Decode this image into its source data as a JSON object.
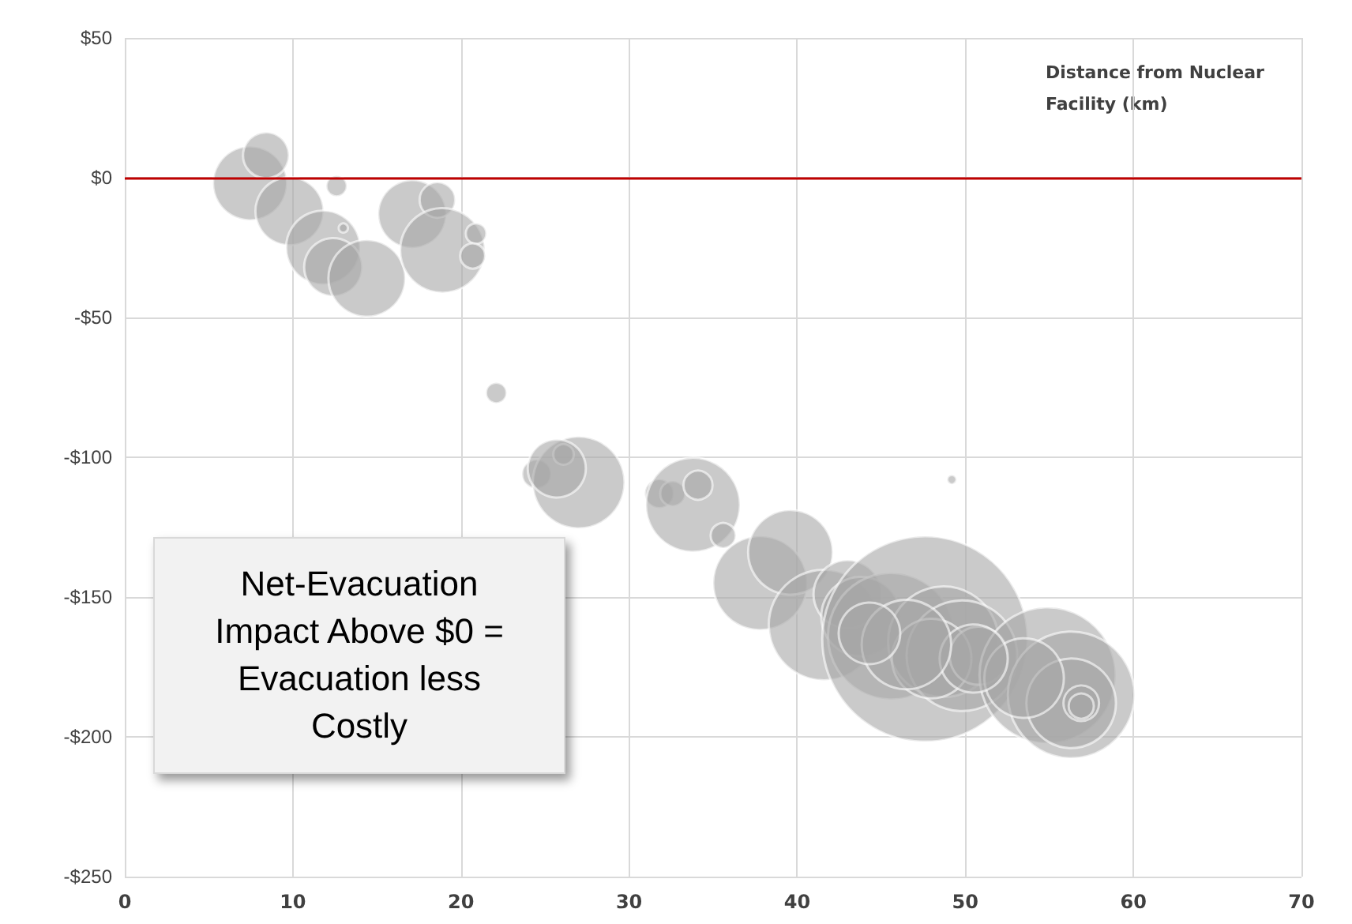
{
  "chart_data": {
    "type": "bubble",
    "xlabel": "Distance from Nuclear Facility (km)",
    "annotations": [
      "Net-Evacuation Impact Above $0 = Evacuation less Costly"
    ],
    "xlim": [
      0,
      70
    ],
    "xticks": [
      0,
      10,
      20,
      30,
      40,
      50,
      60,
      70
    ],
    "ylim": [
      -250,
      50
    ],
    "yticks": [
      {
        "value": -250,
        "label": "-$250"
      },
      {
        "value": -200,
        "label": "-$200"
      },
      {
        "value": -150,
        "label": "-$150"
      },
      {
        "value": -100,
        "label": "-$100"
      },
      {
        "value": -50,
        "label": "-$50"
      },
      {
        "value": 0,
        "label": "$0"
      },
      {
        "value": 50,
        "label": "$50"
      }
    ],
    "grid": true,
    "ref_lines": [
      {
        "axis": "y",
        "value": 0,
        "color": "#c00000"
      }
    ],
    "series": [
      {
        "color": "#a6a6a6",
        "x": [
          7.45,
          8.4,
          9.8,
          12.6,
          11.8,
          13,
          12.4,
          14.4,
          17.1,
          18.6,
          18.9,
          20.9,
          20.7,
          22.1,
          24.5,
          27,
          26.1,
          25.7,
          31.8,
          32.6,
          33.8,
          34.1,
          35.6,
          49.2,
          37.8,
          39.6,
          41.6,
          43,
          43.8,
          45.6,
          47.6,
          48.7,
          49.8,
          48,
          50.8,
          54.9,
          56.3,
          56.3,
          56.9,
          56.9,
          53.5,
          50.5,
          46.5,
          44.3
        ],
        "values": [
          -2,
          8,
          -12,
          -3,
          -25,
          -18,
          -32,
          -36,
          -13,
          -8,
          -26,
          -20,
          -28,
          -77,
          -106,
          -109,
          -99,
          -104,
          -113,
          -113,
          -117,
          -110,
          -128,
          -108,
          -145,
          -134,
          -160,
          -149,
          -157,
          -164,
          -165,
          -166,
          -171,
          -172,
          -171,
          -178,
          -185,
          -188,
          -188,
          -189,
          -179,
          -172,
          -167,
          -163
        ],
        "sizes": [
          0.13,
          0.05,
          0.11,
          0.01,
          0.13,
          0.002,
          0.08,
          0.14,
          0.11,
          0.03,
          0.17,
          0.01,
          0.015,
          0.01,
          0.02,
          0.2,
          0.01,
          0.08,
          0.02,
          0.015,
          0.21,
          0.02,
          0.015,
          0.002,
          0.21,
          0.17,
          0.29,
          0.11,
          0.15,
          0.38,
          1,
          0.29,
          0.29,
          0.15,
          0.08,
          0.44,
          0.38,
          0.19,
          0.03,
          0.015,
          0.15,
          0.11,
          0.19,
          0.09
        ]
      }
    ]
  }
}
